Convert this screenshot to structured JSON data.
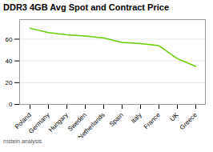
{
  "chart_data": {
    "type": "line",
    "title": "DDR3 4GB Avg Spot and Contract Price",
    "footnote": "rnstein analysis",
    "categories": [
      "Poland",
      "Germany",
      "Hungary",
      "Sweden",
      "Netherlands",
      "Spain",
      "Italy",
      "France",
      "UK",
      "Greece"
    ],
    "values": [
      70,
      66,
      64,
      63,
      61,
      57,
      56,
      54,
      42,
      35
    ],
    "color": "#66cc00",
    "ylim": [
      0,
      78
    ],
    "yticks": [
      0,
      20,
      40,
      60
    ],
    "grid": true
  }
}
